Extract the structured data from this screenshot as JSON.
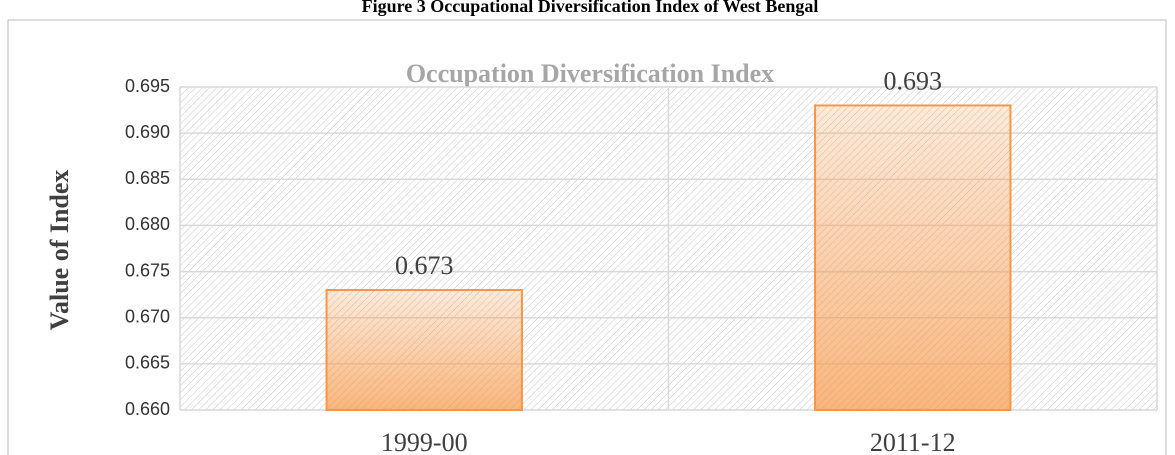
{
  "caption": "Figure 3 Occupational Diversification Index of West Bengal",
  "chart_data": {
    "type": "bar",
    "title": "Occupation Diversification Index",
    "y_label": "Value of Index",
    "categories": [
      "1999-00",
      "2011-12"
    ],
    "values": [
      0.673,
      0.693
    ],
    "color": "#f79646",
    "ylim": [
      0.66,
      0.695
    ],
    "yticks": [
      {
        "value": 0.66,
        "label": "0.660"
      },
      0.665,
      {
        "value": 0.67,
        "label": "0.670"
      },
      0.675,
      {
        "value": 0.68,
        "label": "0.680"
      },
      0.685,
      {
        "value": 0.69,
        "label": "0.690"
      },
      0.695
    ],
    "grid": true
  }
}
